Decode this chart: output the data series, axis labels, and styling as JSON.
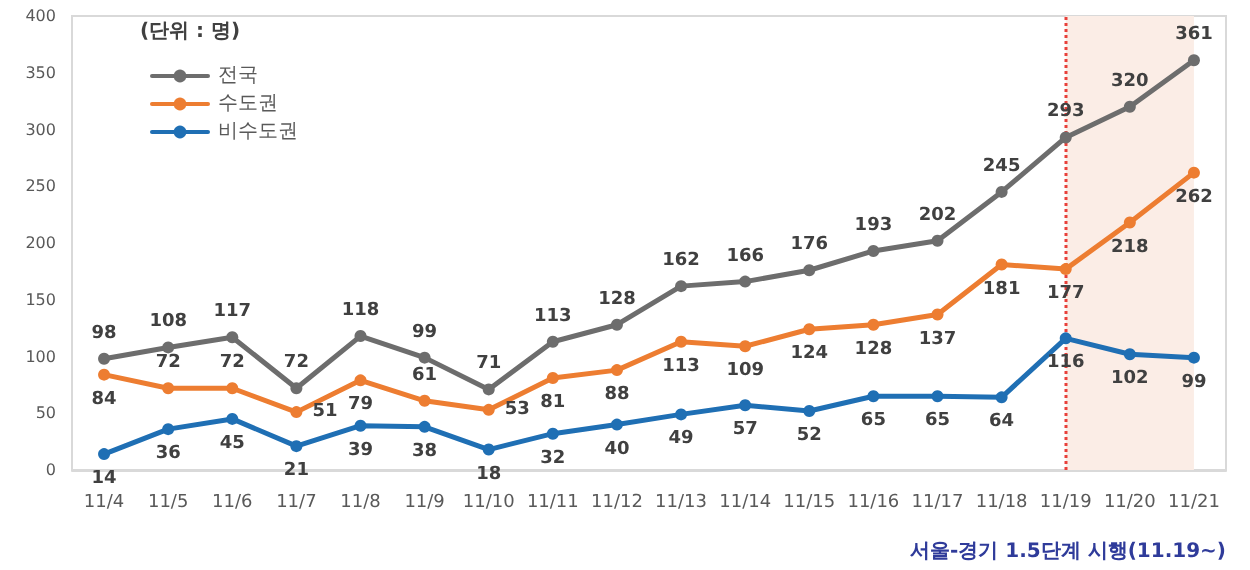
{
  "chart_data": {
    "type": "line",
    "legend_title": "(단위 : 명)",
    "categories": [
      "11/4",
      "11/5",
      "11/6",
      "11/7",
      "11/8",
      "11/9",
      "11/10",
      "11/11",
      "11/12",
      "11/13",
      "11/14",
      "11/15",
      "11/16",
      "11/17",
      "11/18",
      "11/19",
      "11/20",
      "11/21"
    ],
    "series": [
      {
        "name": "전국",
        "color": "#6d6d6d",
        "values": [
          98,
          108,
          117,
          72,
          118,
          99,
          71,
          113,
          128,
          162,
          166,
          176,
          193,
          202,
          245,
          293,
          320,
          361
        ]
      },
      {
        "name": "수도권",
        "color": "#ed7d31",
        "values": [
          84,
          72,
          72,
          51,
          79,
          61,
          53,
          81,
          88,
          113,
          109,
          124,
          128,
          137,
          181,
          177,
          218,
          262
        ]
      },
      {
        "name": "비수도권",
        "color": "#1f6fb4",
        "values": [
          14,
          36,
          45,
          21,
          39,
          38,
          18,
          32,
          40,
          49,
          57,
          52,
          65,
          65,
          64,
          116,
          102,
          99
        ]
      }
    ],
    "ylim": [
      0,
      400
    ],
    "yticks": [
      0,
      50,
      100,
      150,
      200,
      250,
      300,
      350,
      400
    ],
    "grid": false,
    "legend": "top left",
    "marker": "circle",
    "line_style": "solid",
    "data_labels": true,
    "ref_lines": [
      {
        "axis": "x",
        "value": "11/19",
        "color": "#e8403a",
        "line_style": "dotted"
      }
    ],
    "bands": [
      {
        "axis": "x",
        "from": "11/19",
        "to": "11/21",
        "color": "#fbede6"
      }
    ],
    "annotations": [
      "서울-경기 1.5단계 시행(11.19~)"
    ]
  }
}
